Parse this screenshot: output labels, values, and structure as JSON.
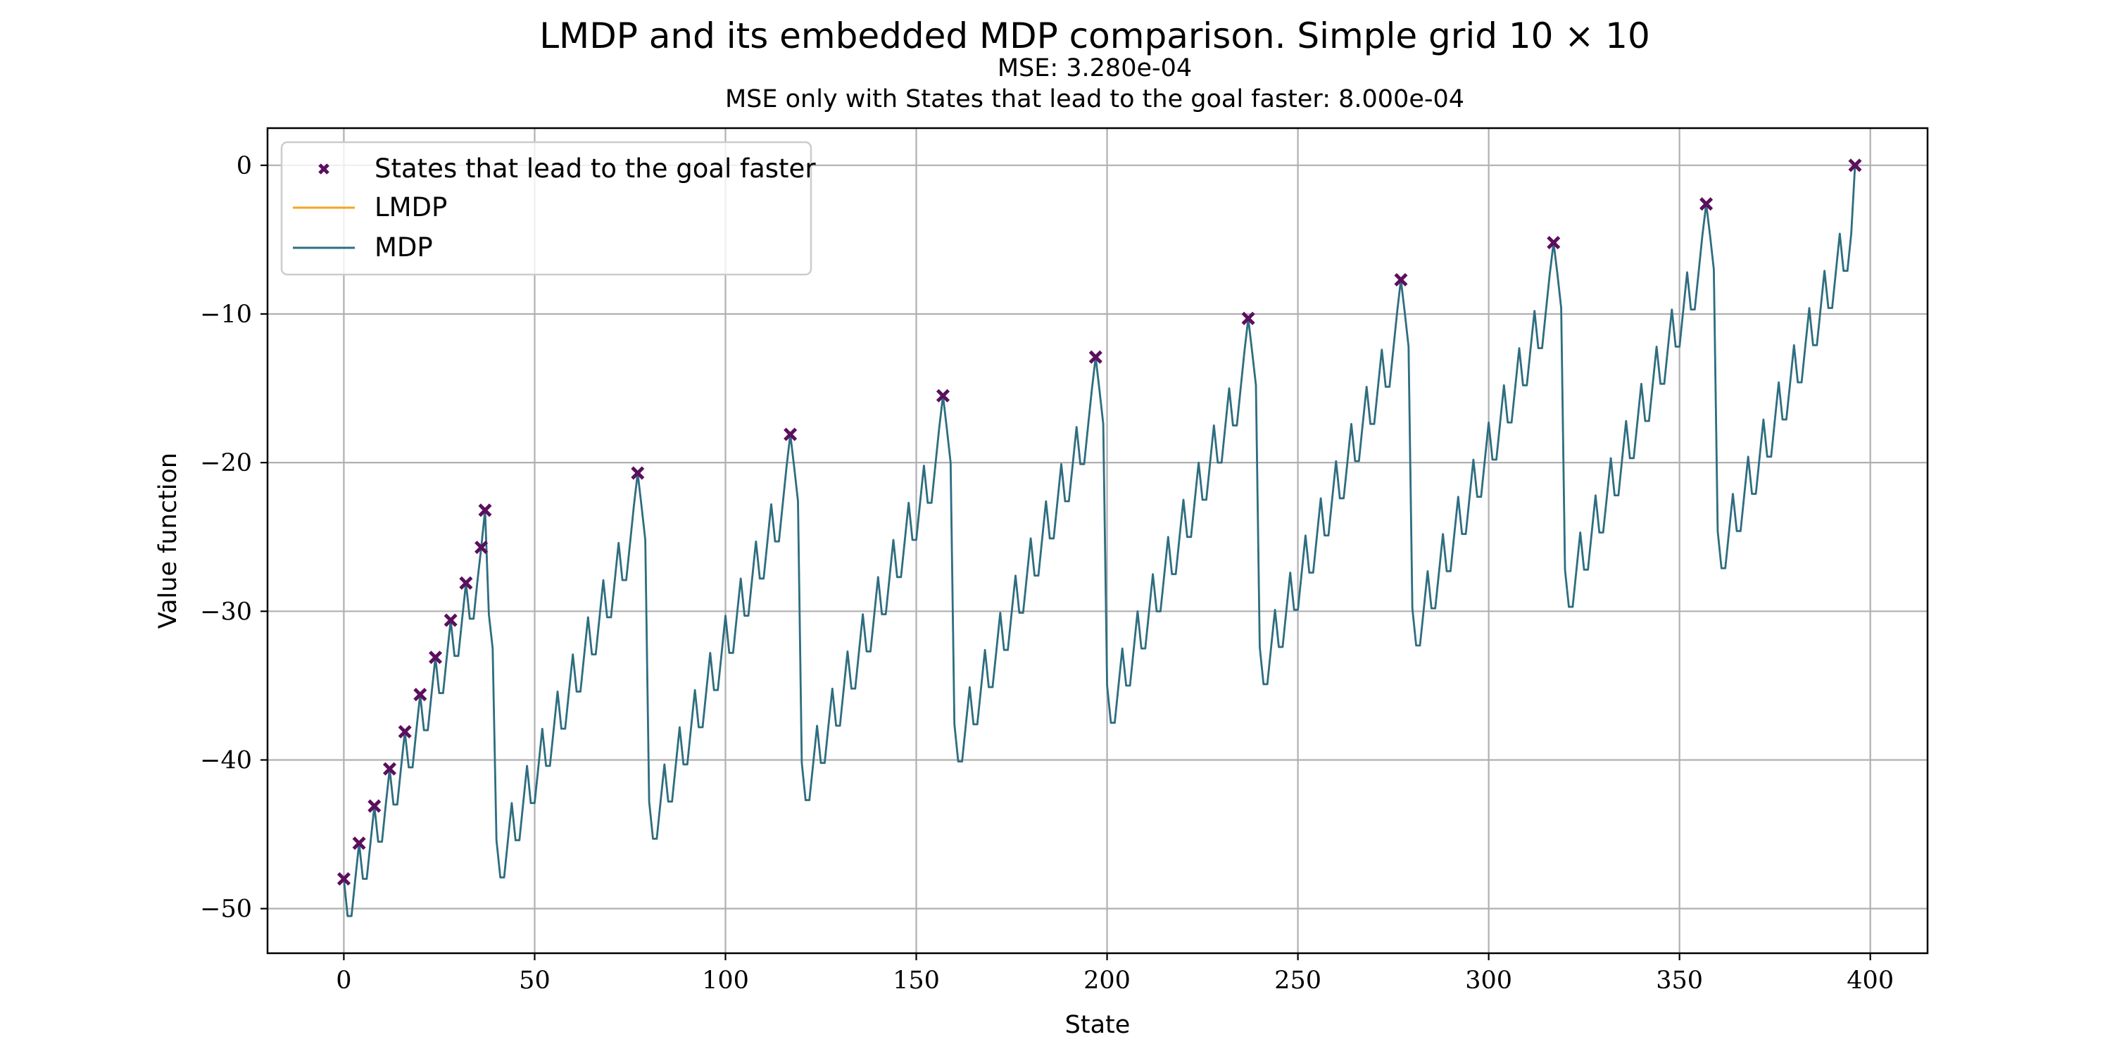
{
  "chart_data": {
    "type": "line",
    "title": "LMDP and its embedded MDP comparison. Simple grid 10 × 10",
    "subtitle_lines": [
      "MSE: 3.280e-04",
      "MSE only with States that lead to the goal faster: 8.000e-04"
    ],
    "xlabel": "State",
    "ylabel": "Value function",
    "xlim": [
      -20,
      415
    ],
    "ylim": [
      -53,
      2.5
    ],
    "xticks": [
      0,
      50,
      100,
      150,
      200,
      250,
      300,
      350,
      400
    ],
    "yticks": [
      -50,
      -40,
      -30,
      -20,
      -10,
      0
    ],
    "ytick_labels": [
      "−50",
      "−40",
      "−30",
      "−20",
      "−10",
      "0"
    ],
    "grid": true,
    "legend_position": "top-left",
    "colors": {
      "mdp": "#2d6e83",
      "lmdp": "#f5a623",
      "marker": "#5b0f5e",
      "grid": "#b0b0b0"
    },
    "series": [
      {
        "name": "States that lead to the goal faster",
        "kind": "marker",
        "x": [
          0,
          4,
          8,
          12,
          16,
          20,
          24,
          28,
          32,
          36,
          37,
          77,
          117,
          157,
          197,
          237,
          277,
          317,
          357,
          396
        ],
        "y": [
          -48.0,
          -45.6,
          -43.1,
          -40.6,
          -38.1,
          -35.6,
          -33.1,
          -30.6,
          -28.1,
          -25.7,
          -23.2,
          -20.7,
          -18.1,
          -15.5,
          -12.9,
          -10.3,
          -7.7,
          -5.2,
          -2.6,
          0
        ]
      },
      {
        "name": "LMDP",
        "kind": "line",
        "note_hidden_under_mdp": true
      },
      {
        "name": "MDP",
        "kind": "line"
      }
    ]
  }
}
